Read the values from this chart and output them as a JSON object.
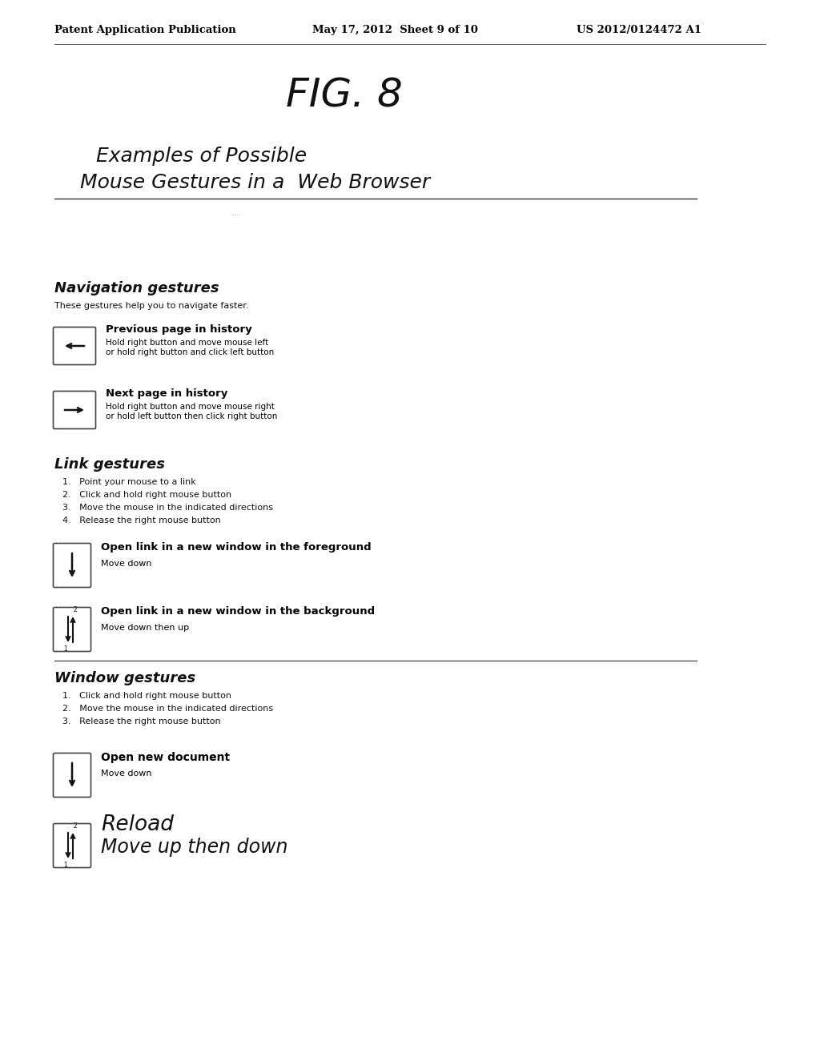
{
  "bg_color": "#ffffff",
  "header_left": "Patent Application Publication",
  "header_mid": "May 17, 2012  Sheet 9 of 10",
  "header_right": "US 2012/0124472 A1",
  "fig_title": "FIG. 8",
  "subtitle_line1": "Examples of Possible",
  "subtitle_line2": "Mouse Gestures in a  Web Browser",
  "nav_section_title": "Navigation gestures",
  "nav_description": "These gestures help you to navigate faster.",
  "prev_page_title": "Previous page in history",
  "prev_page_desc1": "Hold right button and move mouse left",
  "prev_page_desc2": "or hold right button and click left button",
  "next_page_title": "Next page in history",
  "next_page_desc1": "Hold right button and move mouse right",
  "next_page_desc2": "or hold left button then click right button",
  "link_section_title": "Link gestures",
  "link_steps": [
    "1.   Point your mouse to a link",
    "2.   Click and hold right mouse button",
    "3.   Move the mouse in the indicated directions",
    "4.   Release the right mouse button"
  ],
  "link_fg_title": "Open link in a new window in the foreground",
  "link_fg_desc": "Move down",
  "link_bg_title": "Open link in a new window in the background",
  "link_bg_desc": "Move down then up",
  "window_section_title": "Window gestures",
  "window_steps": [
    "1.   Click and hold right mouse button",
    "2.   Move the mouse in the indicated directions",
    "3.   Release the right mouse button"
  ],
  "open_doc_title": "Open new document",
  "open_doc_desc": "Move down",
  "reload_title": "Reload",
  "reload_desc": "Move up then down"
}
